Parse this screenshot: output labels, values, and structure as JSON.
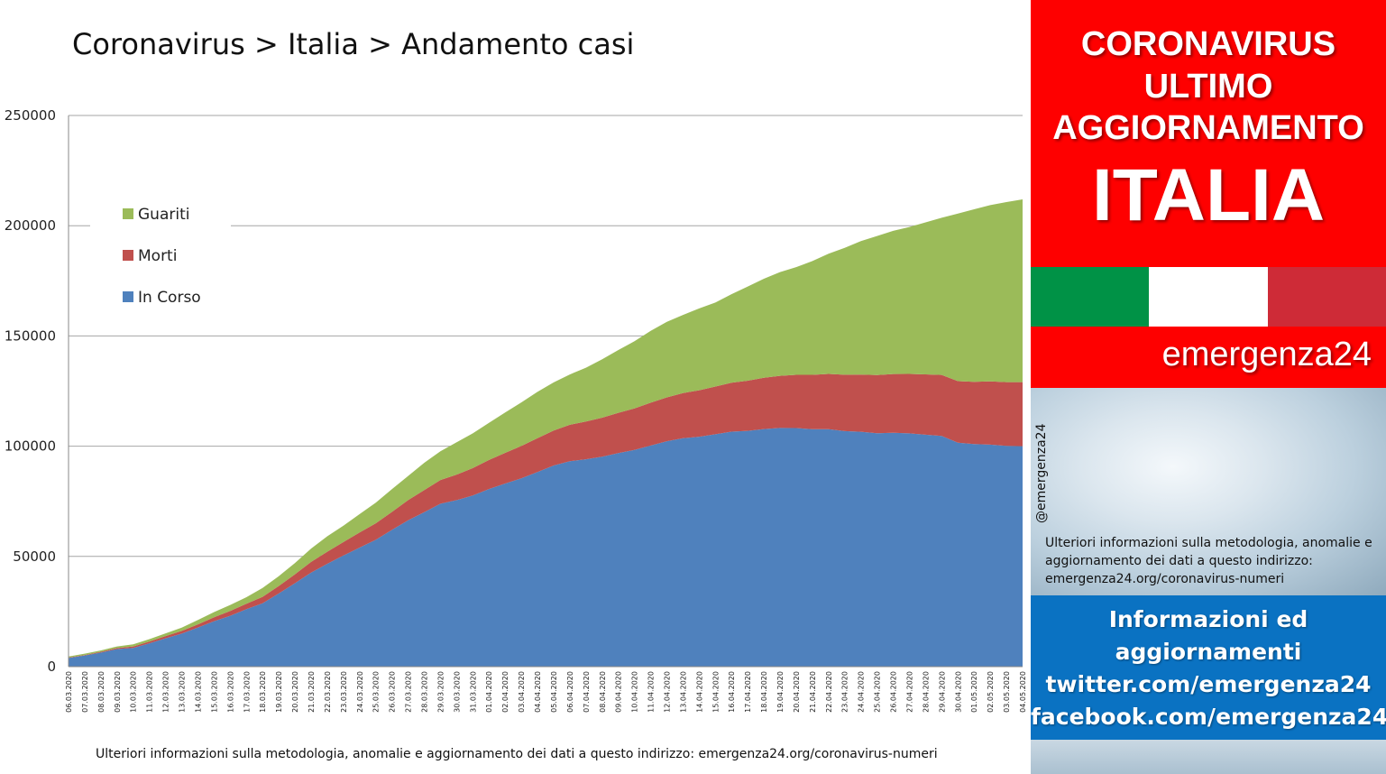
{
  "title": "Coronavirus > Italia > Andamento casi",
  "footer": "Ulteriori informazioni sulla metodologia, anomalie e aggiornamento dei dati a questo indirizzo: emergenza24.org/coronavirus-numeri",
  "chart_data": {
    "type": "area",
    "stacked": true,
    "ylim": [
      0,
      250000
    ],
    "yticks": [
      0,
      50000,
      100000,
      150000,
      200000,
      250000
    ],
    "grid": true,
    "legend_position": "top-left",
    "x": [
      "06.03.2020",
      "07.03.2020",
      "08.03.2020",
      "09.03.2020",
      "10.03.2020",
      "11.03.2020",
      "12.03.2020",
      "13.03.2020",
      "14.03.2020",
      "15.03.2020",
      "16.03.2020",
      "17.03.2020",
      "18.03.2020",
      "19.03.2020",
      "20.03.2020",
      "21.03.2020",
      "22.03.2020",
      "23.03.2020",
      "24.03.2020",
      "25.03.2020",
      "26.03.2020",
      "27.03.2020",
      "28.03.2020",
      "29.03.2020",
      "30.03.2020",
      "31.03.2020",
      "01.04.2020",
      "02.04.2020",
      "03.04.2020",
      "04.04.2020",
      "05.04.2020",
      "06.04.2020",
      "07.04.2020",
      "08.04.2020",
      "09.04.2020",
      "10.04.2020",
      "11.04.2020",
      "12.04.2020",
      "13.04.2020",
      "14.04.2020",
      "15.04.2020",
      "16.04.2020",
      "17.04.2020",
      "18.04.2020",
      "19.04.2020",
      "20.04.2020",
      "21.04.2020",
      "22.04.2020",
      "23.04.2020",
      "24.04.2020",
      "25.04.2020",
      "26.04.2020",
      "27.04.2020",
      "28.04.2020",
      "29.04.2020",
      "30.04.2020",
      "01.05.2020",
      "02.05.2020",
      "03.05.2020",
      "04.05.2020"
    ],
    "series": [
      {
        "name": "In Corso",
        "color": "#4f81bd",
        "values": [
          3916,
          5061,
          6387,
          7985,
          8514,
          10590,
          12839,
          14955,
          17750,
          20603,
          23073,
          26062,
          28710,
          33190,
          37860,
          42681,
          46638,
          50418,
          54030,
          57521,
          62013,
          66414,
          70065,
          73880,
          75528,
          77635,
          80572,
          83049,
          85388,
          88274,
          91246,
          93187,
          94067,
          95262,
          96877,
          98273,
          100269,
          102253,
          103616,
          104291,
          105418,
          106607,
          106962,
          107771,
          108257,
          108237,
          107709,
          107699,
          106848,
          106527,
          105847,
          106103,
          105813,
          105205,
          104657,
          101551,
          100943,
          100704,
          100179,
          99980
        ]
      },
      {
        "name": "Morti",
        "color": "#c0504d",
        "values": [
          197,
          233,
          366,
          463,
          631,
          827,
          1016,
          1266,
          1441,
          1809,
          2158,
          2503,
          2978,
          3405,
          4032,
          4825,
          5476,
          6077,
          6820,
          7503,
          8165,
          9134,
          10023,
          10779,
          11591,
          12428,
          13155,
          13915,
          14681,
          15362,
          15887,
          16523,
          17127,
          17669,
          18279,
          18849,
          19468,
          19899,
          20465,
          21067,
          21645,
          22170,
          22745,
          23227,
          23660,
          24114,
          24648,
          25085,
          25549,
          25969,
          26384,
          26644,
          26977,
          27359,
          27682,
          27967,
          28236,
          28710,
          28884,
          29079
        ]
      },
      {
        "name": "Guariti",
        "color": "#9bbb59",
        "values": [
          523,
          589,
          622,
          724,
          1004,
          1045,
          1258,
          1439,
          1966,
          2335,
          2749,
          2941,
          4025,
          4440,
          5129,
          6072,
          7024,
          7432,
          8326,
          9362,
          10361,
          10950,
          12384,
          13030,
          14620,
          15729,
          16847,
          18278,
          19758,
          20996,
          21815,
          22837,
          24392,
          26491,
          28470,
          30455,
          32534,
          34211,
          35435,
          37130,
          38092,
          40164,
          42727,
          44927,
          47055,
          48877,
          51600,
          54543,
          57576,
          60498,
          63120,
          64928,
          66624,
          68941,
          71252,
          75945,
          78249,
          79914,
          81654,
          82879
        ]
      }
    ]
  },
  "sidebar": {
    "headline_1": "CORONAVIRUS",
    "headline_2": "ULTIMO",
    "headline_3": "AGGIORNAMENTO",
    "country": "ITALIA",
    "brand": "emergenza24",
    "handle": "@emergenza24",
    "note": "Ulteriori informazioni sulla metodologia, anomalie e aggiornamento dei dati a questo indirizzo: emergenza24.org/coronavirus-numeri",
    "info_1": "Informazioni ed",
    "info_2": "aggiornamenti",
    "info_3": "twitter.com/emergenza24",
    "info_4": "facebook.com/emergenza24",
    "flag_colors": [
      "#009246",
      "#ffffff",
      "#ce2b37"
    ]
  }
}
